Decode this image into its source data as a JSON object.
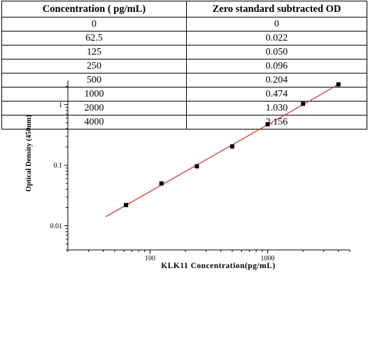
{
  "table": {
    "headers": [
      "Concentration ( pg/mL)",
      "Zero standard subtracted OD"
    ],
    "rows": [
      [
        "0",
        "0"
      ],
      [
        "62.5",
        "0.022"
      ],
      [
        "125",
        "0.050"
      ],
      [
        "250",
        "0.096"
      ],
      [
        "500",
        "0.204"
      ],
      [
        "1000",
        "0.474"
      ],
      [
        "2000",
        "1.030"
      ],
      [
        "4000",
        "2.156"
      ]
    ]
  },
  "chart_data": {
    "type": "scatter",
    "xlabel": "KLK11  Concentration(pg/mL)",
    "ylabel": "Optical Density (450nm)",
    "x_scale": "log",
    "y_scale": "log",
    "xlim": [
      20,
      5000
    ],
    "ylim": [
      0.004,
      2.5
    ],
    "x_ticks": [
      100,
      1000
    ],
    "x_tick_labels": [
      "100",
      "1000"
    ],
    "y_ticks": [
      0.01,
      0.1,
      1
    ],
    "y_tick_labels": [
      "0.01",
      "0.1",
      "1"
    ],
    "grid": false,
    "legend": "none",
    "series": [
      {
        "x": [
          62.5,
          125,
          250,
          500,
          1000,
          2000,
          4000
        ],
        "y": [
          0.022,
          0.05,
          0.096,
          0.204,
          0.474,
          1.03,
          2.156
        ],
        "marker": "square",
        "color": "#000000"
      }
    ],
    "fit_line": {
      "x_range": [
        42,
        4000
      ],
      "color": "#d42a2a"
    }
  }
}
